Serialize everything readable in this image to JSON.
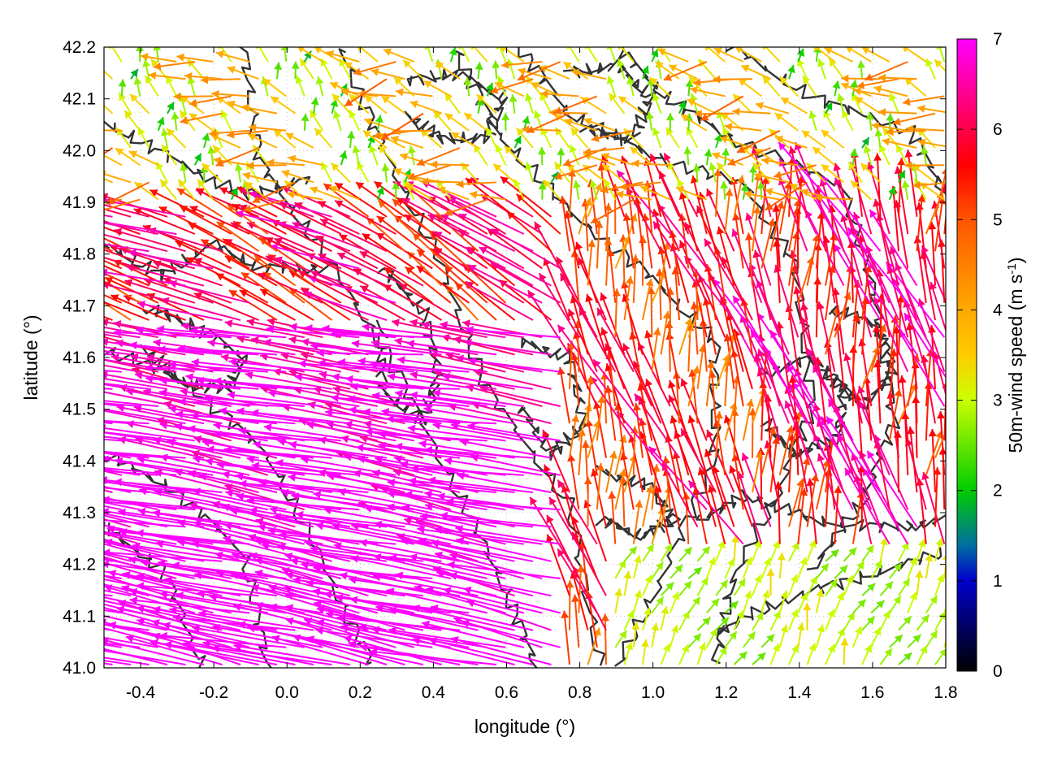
{
  "chart_data": {
    "type": "vector-field",
    "xlabel": "longitude (°)",
    "ylabel": "latitude (°)",
    "xlim": [
      -0.5,
      1.8
    ],
    "ylim": [
      41.0,
      42.2
    ],
    "x_ticks": [
      "-0.4",
      "-0.2",
      "0.0",
      "0.2",
      "0.4",
      "0.6",
      "0.8",
      "1.0",
      "1.2",
      "1.4",
      "1.6",
      "1.8"
    ],
    "y_ticks": [
      "41.0",
      "41.1",
      "41.2",
      "41.3",
      "41.4",
      "41.5",
      "41.6",
      "41.7",
      "41.8",
      "41.9",
      "42.0",
      "42.1",
      "42.2"
    ],
    "colorbar": {
      "label": "50m-wind speed (m s",
      "label_sup": "-1",
      "label_tail": ")",
      "range": [
        0,
        7
      ],
      "ticks": [
        "0",
        "1",
        "2",
        "3",
        "4",
        "5",
        "6",
        "7"
      ],
      "palette": [
        "#000000",
        "#0000cc",
        "#00cc00",
        "#ccff00",
        "#ff9900",
        "#ff0000",
        "#ff00ff"
      ]
    },
    "grid": true,
    "contour_color": "#333333"
  }
}
